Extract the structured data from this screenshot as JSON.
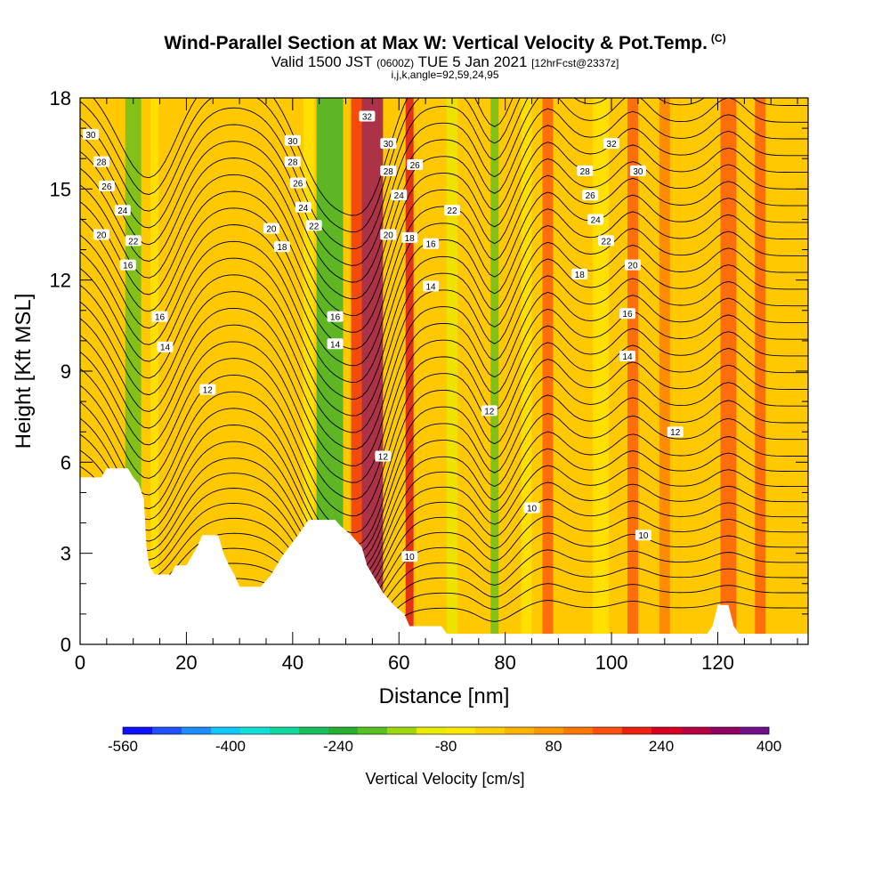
{
  "header": {
    "title": "Wind-Parallel Section at Max W: Vertical Velocity & Pot.Temp.",
    "copyright": "(C)",
    "valid_prefix": "Valid 1500 JST",
    "utc": "(0600Z)",
    "valid_date": "TUE 5 Jan 2021",
    "forecast": "[12hrFcst@2337z]",
    "indices": "i,j,k,angle=92,59,24,95"
  },
  "colors": {
    "bins": [
      "#1010ff",
      "#2050ff",
      "#1c8cff",
      "#10c8ff",
      "#10e0d8",
      "#10d8a0",
      "#18c060",
      "#28b030",
      "#58c020",
      "#a0d810",
      "#e8ec00",
      "#ffe800",
      "#ffd000",
      "#ffb400",
      "#ff9800",
      "#ff7800",
      "#ff5010",
      "#f02010",
      "#d80020",
      "#b80040",
      "#900060",
      "#70108a"
    ],
    "background_field": "#ffc800",
    "terrain": "#ffffff"
  },
  "chart_data": {
    "type": "heatmap",
    "xlabel": "Distance [nm]",
    "ylabel": "Height [Kft MSL]",
    "xlim": [
      0,
      137
    ],
    "ylim": [
      0,
      18
    ],
    "x_ticks": [
      0,
      20,
      40,
      60,
      80,
      100,
      120
    ],
    "y_ticks": [
      0,
      3,
      6,
      9,
      12,
      15,
      18
    ],
    "colorbar": {
      "title": "Vertical Velocity [cm/s]",
      "tick_values": [
        "-560",
        "-400",
        "-240",
        "-80",
        "80",
        "240",
        "400"
      ]
    },
    "velocity_bands": [
      {
        "x": 10,
        "width": 3,
        "value": -200
      },
      {
        "x": 14,
        "width": 1.5,
        "value": -60
      },
      {
        "x": 47,
        "width": 5,
        "value": -240
      },
      {
        "x": 43,
        "width": 2,
        "value": -80
      },
      {
        "x": 55,
        "width": 4,
        "value": 320
      },
      {
        "x": 52,
        "width": 2,
        "value": 200
      },
      {
        "x": 62,
        "width": 1.5,
        "value": 260
      },
      {
        "x": 70,
        "width": 2,
        "value": -100
      },
      {
        "x": 78,
        "width": 1.5,
        "value": -200
      },
      {
        "x": 84,
        "width": 2,
        "value": -80
      },
      {
        "x": 88,
        "width": 2,
        "value": 140
      },
      {
        "x": 98,
        "width": 3,
        "value": -60
      },
      {
        "x": 104,
        "width": 2,
        "value": 160
      },
      {
        "x": 110,
        "width": 2,
        "value": 120
      },
      {
        "x": 122,
        "width": 3,
        "value": 160
      },
      {
        "x": 128,
        "width": 2,
        "value": 140
      }
    ],
    "isentrope_labels": [
      "30",
      "28",
      "26",
      "24",
      "20",
      "22",
      "18",
      "16",
      "14",
      "12",
      "10",
      "32"
    ],
    "terrain_profile": [
      [
        0,
        5.5
      ],
      [
        4,
        5.5
      ],
      [
        5,
        5.8
      ],
      [
        9,
        5.8
      ],
      [
        10,
        5.5
      ],
      [
        11,
        5.3
      ],
      [
        12,
        4.8
      ],
      [
        12.5,
        3.2
      ],
      [
        13,
        2.6
      ],
      [
        14,
        2.3
      ],
      [
        17,
        2.3
      ],
      [
        18,
        2.6
      ],
      [
        20,
        2.6
      ],
      [
        22,
        3.2
      ],
      [
        23,
        3.6
      ],
      [
        26,
        3.6
      ],
      [
        27,
        3.0
      ],
      [
        28,
        2.6
      ],
      [
        29,
        2.3
      ],
      [
        30,
        1.9
      ],
      [
        34,
        1.9
      ],
      [
        36,
        2.3
      ],
      [
        38,
        2.9
      ],
      [
        41,
        3.6
      ],
      [
        43,
        4.1
      ],
      [
        48,
        4.1
      ],
      [
        49,
        3.9
      ],
      [
        51,
        3.6
      ],
      [
        53,
        3.2
      ],
      [
        54,
        2.6
      ],
      [
        56,
        2.0
      ],
      [
        57,
        1.7
      ],
      [
        59,
        1.3
      ],
      [
        61,
        1.0
      ],
      [
        62,
        0.6
      ],
      [
        65,
        0.6
      ],
      [
        68,
        0.6
      ],
      [
        69,
        0.35
      ],
      [
        100,
        0.35
      ],
      [
        118,
        0.35
      ],
      [
        119,
        0.6
      ],
      [
        120,
        1.3
      ],
      [
        122,
        1.3
      ],
      [
        123,
        0.6
      ],
      [
        124,
        0.35
      ],
      [
        137,
        0.35
      ]
    ]
  }
}
